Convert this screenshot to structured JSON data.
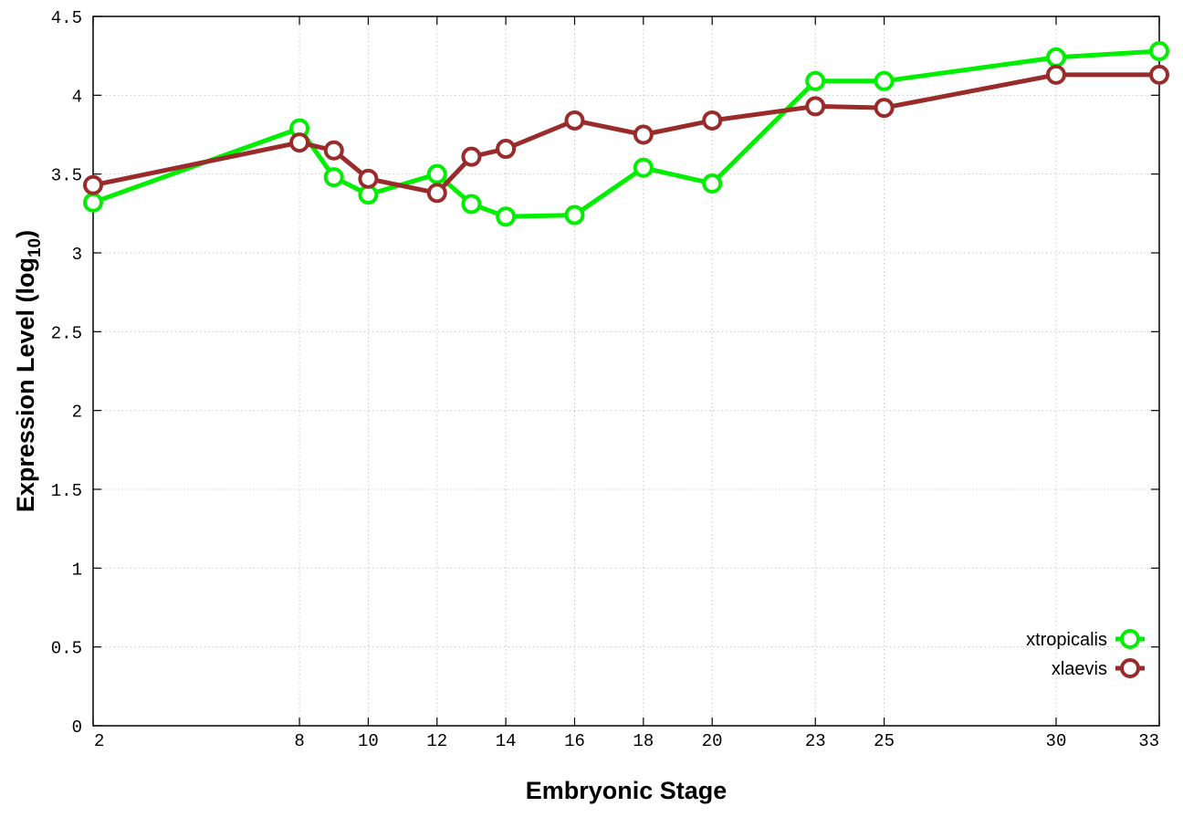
{
  "chart_data": {
    "type": "line",
    "xlabel": "Embryonic Stage",
    "ylabel_main": "Expression Level (log",
    "ylabel_sub": "10",
    "ylabel_close": ")",
    "x_ticks": [
      2,
      8,
      10,
      12,
      14,
      16,
      18,
      20,
      23,
      25,
      30,
      33
    ],
    "x_tick_labels": [
      "2",
      "8",
      "10",
      "12",
      "14",
      "16",
      "18",
      "20",
      "23",
      "25",
      "30",
      "33"
    ],
    "y_ticks": [
      0,
      0.5,
      1,
      1.5,
      2,
      2.5,
      3,
      3.5,
      4,
      4.5
    ],
    "y_tick_labels": [
      "0",
      "0.5",
      "1",
      "1.5",
      "2",
      "2.5",
      "3",
      "3.5",
      "4",
      "4.5"
    ],
    "xlim": [
      2,
      33
    ],
    "ylim": [
      0,
      4.5
    ],
    "grid": true,
    "legend_position": "bottom-right",
    "x": [
      2,
      8,
      9,
      10,
      12,
      13,
      14,
      16,
      18,
      20,
      23,
      25,
      30,
      33
    ],
    "series": [
      {
        "name": "xtropicalis",
        "color": "#00ee00",
        "values": [
          3.32,
          3.79,
          3.48,
          3.37,
          3.5,
          3.31,
          3.23,
          3.24,
          3.54,
          3.44,
          4.09,
          4.09,
          4.24,
          4.28
        ]
      },
      {
        "name": "xlaevis",
        "color": "#992b2b",
        "values": [
          3.43,
          3.7,
          3.65,
          3.47,
          3.38,
          3.61,
          3.66,
          3.84,
          3.75,
          3.84,
          3.93,
          3.92,
          4.13,
          4.13
        ]
      }
    ]
  }
}
